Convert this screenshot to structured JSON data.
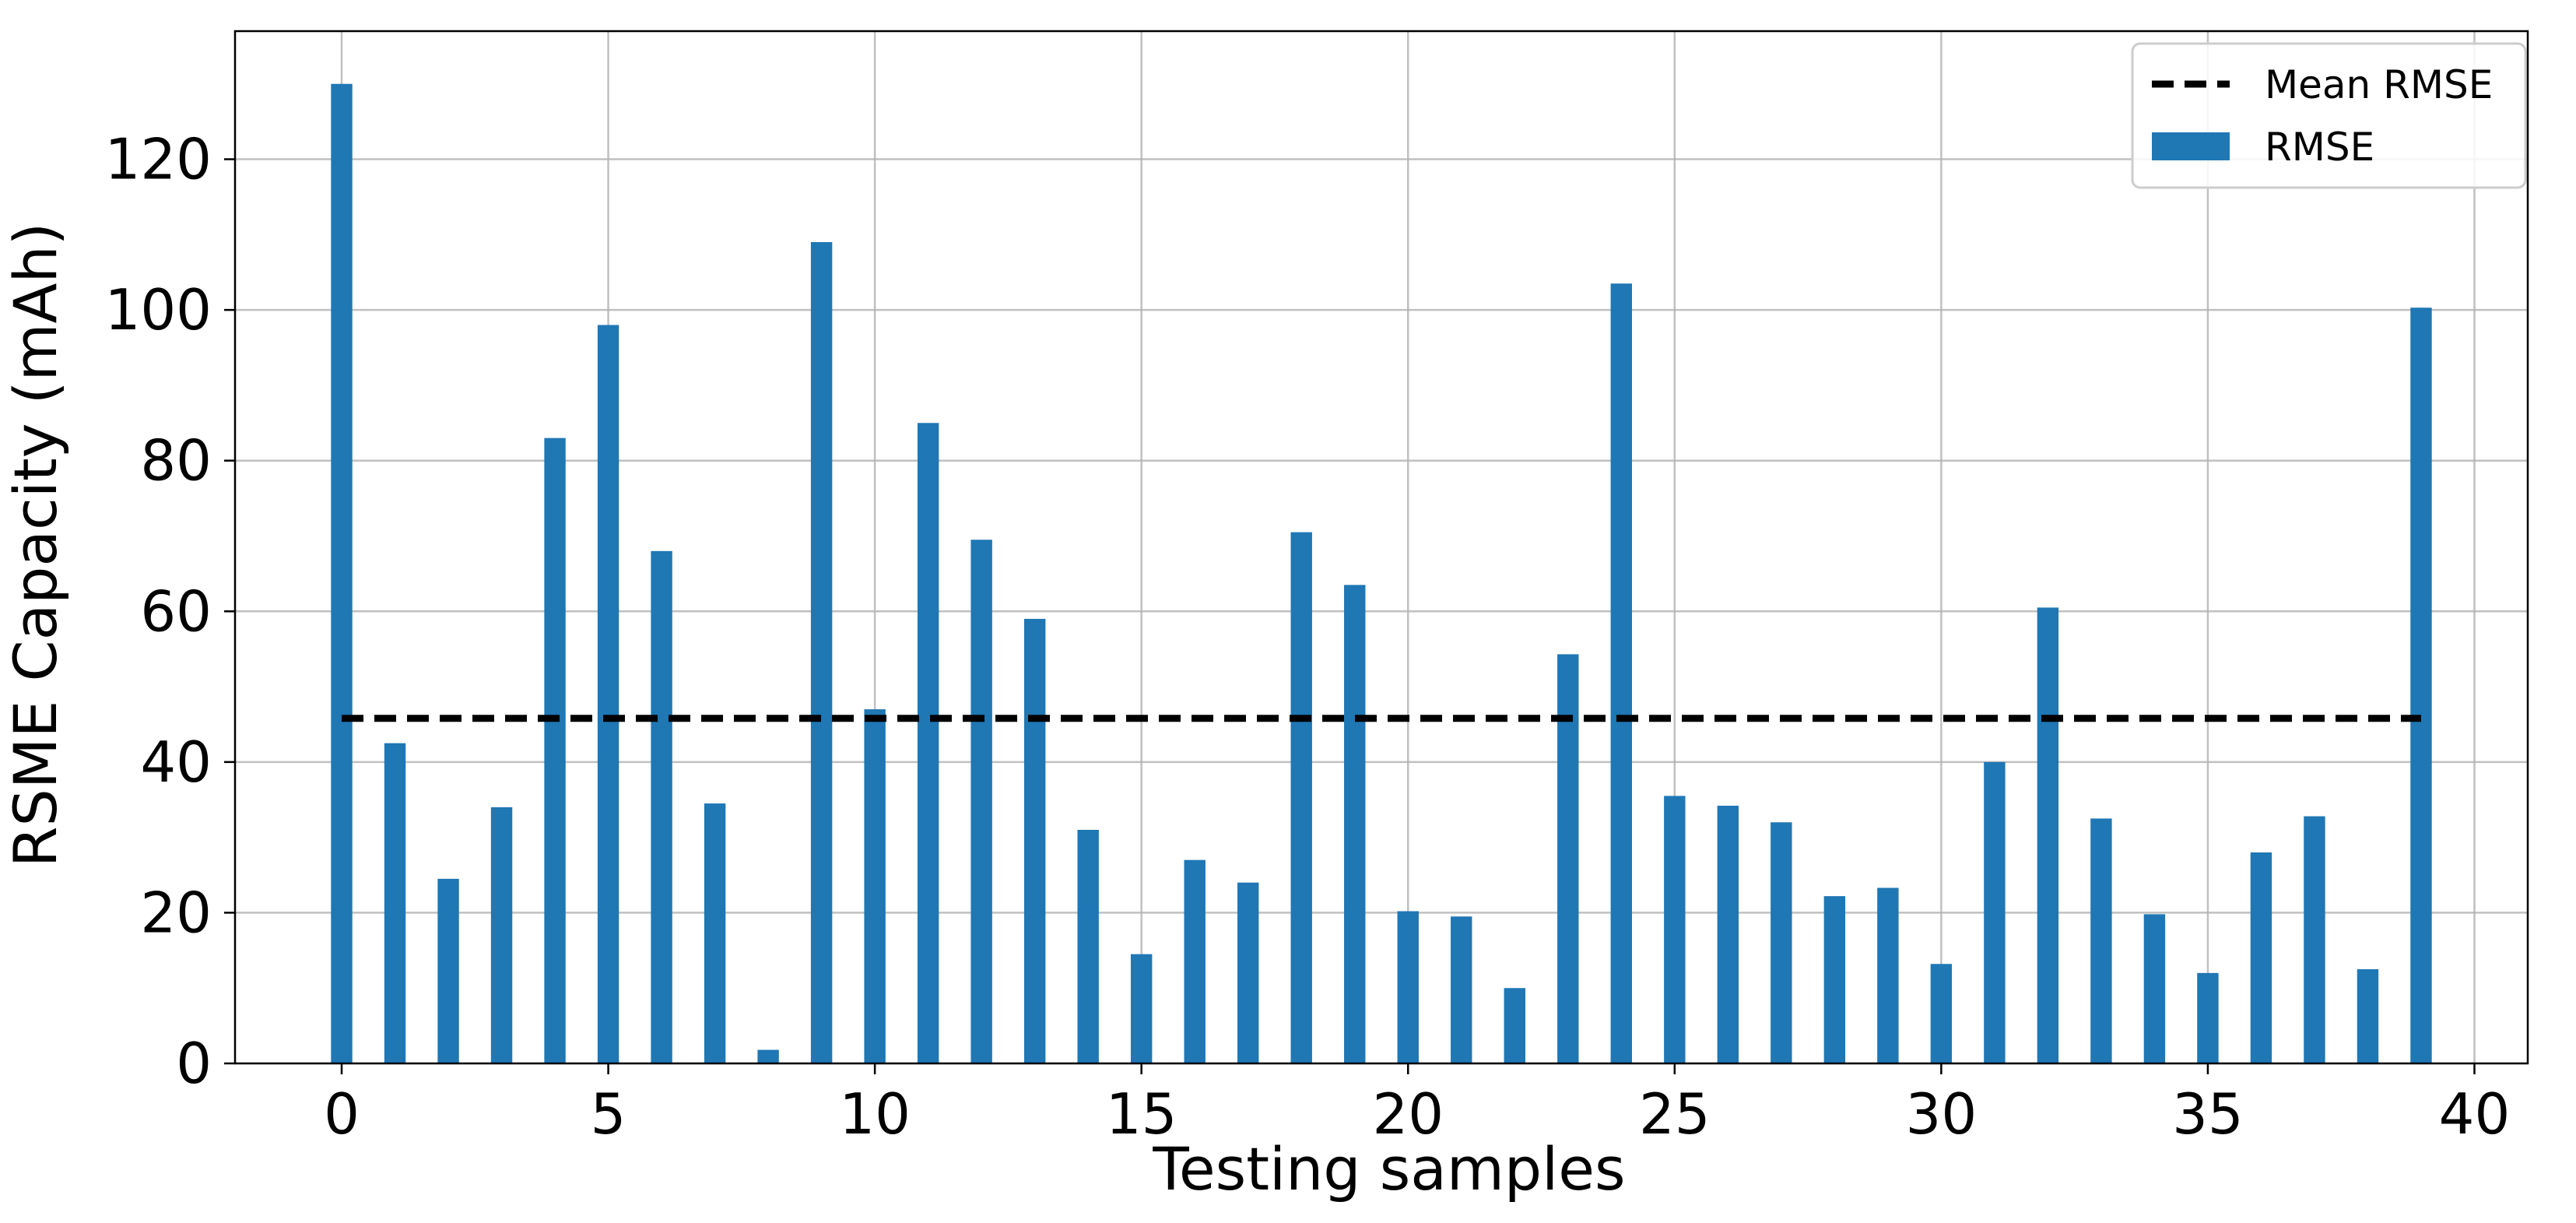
{
  "chart_data": {
    "type": "bar",
    "title": "",
    "xlabel": "Testing samples",
    "ylabel": "RSME Capacity (mAh)",
    "x": [
      0,
      1,
      2,
      3,
      4,
      5,
      6,
      7,
      8,
      9,
      10,
      11,
      12,
      13,
      14,
      15,
      16,
      17,
      18,
      19,
      20,
      21,
      22,
      23,
      24,
      25,
      26,
      27,
      28,
      29,
      30,
      31,
      32,
      33,
      34,
      35,
      36,
      37,
      38,
      39
    ],
    "series": [
      {
        "name": "RMSE",
        "color": "#1f77b4",
        "values": [
          130.0,
          42.5,
          24.5,
          34.0,
          83.0,
          98.0,
          68.0,
          34.5,
          1.8,
          109.0,
          47.0,
          85.0,
          69.5,
          59.0,
          31.0,
          14.5,
          27.0,
          24.0,
          70.5,
          63.5,
          20.2,
          19.5,
          10.0,
          54.3,
          103.5,
          35.5,
          34.2,
          32.0,
          22.2,
          23.3,
          13.2,
          40.0,
          60.5,
          32.5,
          19.8,
          12.0,
          28.0,
          32.8,
          12.5,
          100.3
        ]
      }
    ],
    "reference_lines": [
      {
        "name": "Mean RMSE",
        "value": 45.8,
        "style": "dashed",
        "color": "#000000",
        "x_start": 0,
        "x_end": 39
      }
    ],
    "xlim": [
      -2,
      41
    ],
    "ylim": [
      0,
      137
    ],
    "xticks": [
      0,
      5,
      10,
      15,
      20,
      25,
      30,
      35,
      40
    ],
    "xtick_labels": [
      "0",
      "5",
      "10",
      "15",
      "20",
      "25",
      "30",
      "35",
      "40"
    ],
    "yticks": [
      0,
      20,
      40,
      60,
      80,
      100,
      120
    ],
    "ytick_labels": [
      "0",
      "20",
      "40",
      "60",
      "80",
      "100",
      "120"
    ],
    "grid": true,
    "legend_position": "top-right",
    "legend_entries": [
      "Mean RMSE",
      "RMSE"
    ]
  }
}
